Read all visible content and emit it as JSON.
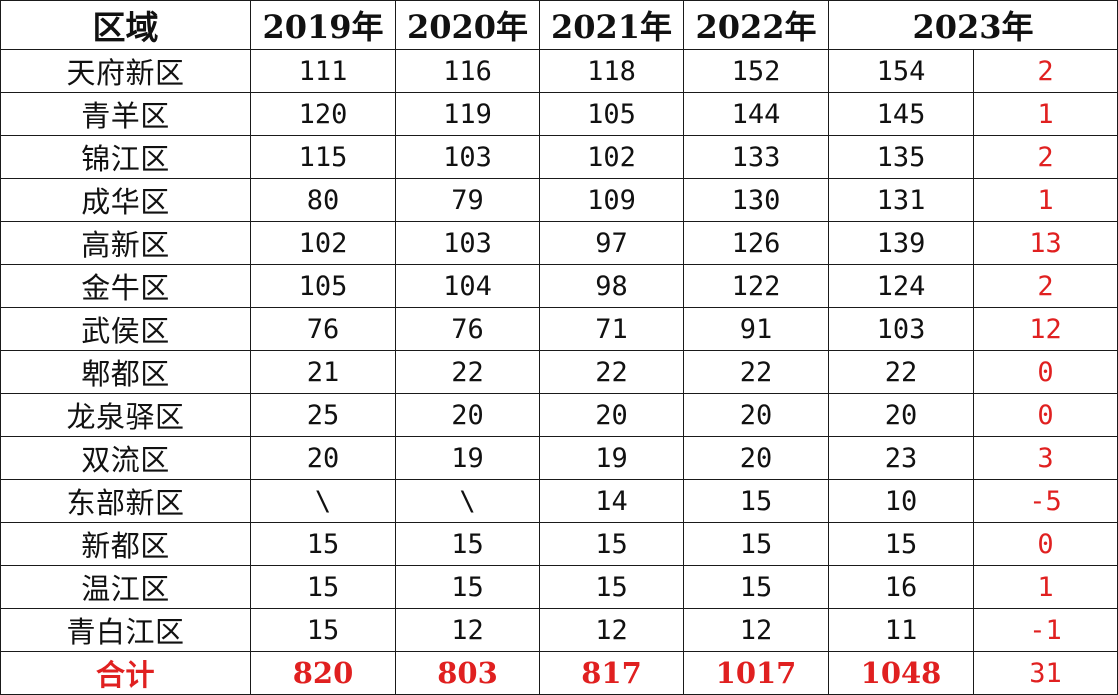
{
  "headers": {
    "region": "区域",
    "y2019": "2019年",
    "y2020": "2020年",
    "y2021": "2021年",
    "y2022": "2022年",
    "y2023": "2023年"
  },
  "rows": [
    {
      "region": "天府新区",
      "y2019": "111",
      "y2020": "116",
      "y2021": "118",
      "y2022": "152",
      "y2023": "154",
      "diff": "2"
    },
    {
      "region": "青羊区",
      "y2019": "120",
      "y2020": "119",
      "y2021": "105",
      "y2022": "144",
      "y2023": "145",
      "diff": "1"
    },
    {
      "region": "锦江区",
      "y2019": "115",
      "y2020": "103",
      "y2021": "102",
      "y2022": "133",
      "y2023": "135",
      "diff": "2"
    },
    {
      "region": "成华区",
      "y2019": "80",
      "y2020": "79",
      "y2021": "109",
      "y2022": "130",
      "y2023": "131",
      "diff": "1"
    },
    {
      "region": "高新区",
      "y2019": "102",
      "y2020": "103",
      "y2021": "97",
      "y2022": "126",
      "y2023": "139",
      "diff": "13"
    },
    {
      "region": "金牛区",
      "y2019": "105",
      "y2020": "104",
      "y2021": "98",
      "y2022": "122",
      "y2023": "124",
      "diff": "2"
    },
    {
      "region": "武侯区",
      "y2019": "76",
      "y2020": "76",
      "y2021": "71",
      "y2022": "91",
      "y2023": "103",
      "diff": "12"
    },
    {
      "region": "郫都区",
      "y2019": "21",
      "y2020": "22",
      "y2021": "22",
      "y2022": "22",
      "y2023": "22",
      "diff": "0"
    },
    {
      "region": "龙泉驿区",
      "y2019": "25",
      "y2020": "20",
      "y2021": "20",
      "y2022": "20",
      "y2023": "20",
      "diff": "0"
    },
    {
      "region": "双流区",
      "y2019": "20",
      "y2020": "19",
      "y2021": "19",
      "y2022": "20",
      "y2023": "23",
      "diff": "3"
    },
    {
      "region": "东部新区",
      "y2019": "\\",
      "y2020": "\\",
      "y2021": "14",
      "y2022": "15",
      "y2023": "10",
      "diff": "-5"
    },
    {
      "region": "新都区",
      "y2019": "15",
      "y2020": "15",
      "y2021": "15",
      "y2022": "15",
      "y2023": "15",
      "diff": "0"
    },
    {
      "region": "温江区",
      "y2019": "15",
      "y2020": "15",
      "y2021": "15",
      "y2022": "15",
      "y2023": "16",
      "diff": "1"
    },
    {
      "region": "青白江区",
      "y2019": "15",
      "y2020": "12",
      "y2021": "12",
      "y2022": "12",
      "y2023": "11",
      "diff": "-1"
    }
  ],
  "total": {
    "region": "合计",
    "y2019": "820",
    "y2020": "803",
    "y2021": "817",
    "y2022": "1017",
    "y2023": "1048",
    "diff": "31"
  },
  "colors": {
    "border": "#1a1a1a",
    "text": "#111111",
    "highlight": "#e02020"
  }
}
